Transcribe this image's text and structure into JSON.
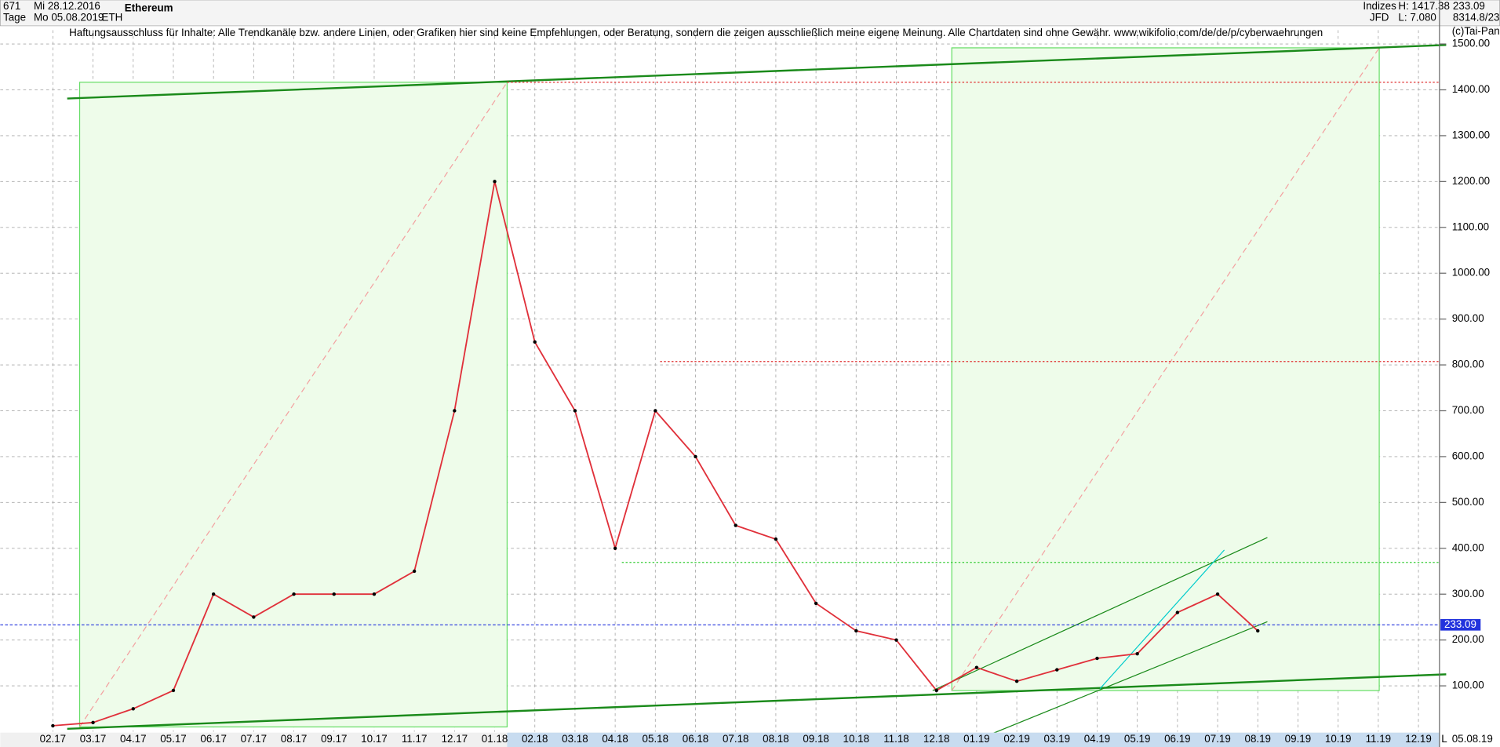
{
  "header": {
    "count": "671",
    "start": "Mi 28.12.2016",
    "period": "Tage",
    "end": "Mo 05.08.2019",
    "group": "Indizes",
    "broker": "JFD",
    "high": "H: 1417.38",
    "low": "L: 7.080",
    "stat": "8314.8/23",
    "copyright": "(c)Tai-Pan",
    "disclaimer": "Haftungsausschluss für Inhalte: Alle Trendkanäle bzw. andere Linien, oder Grafiken hier sind keine Empfehlungen, oder Beratung, sondern die zeigen ausschließlich meine eigene Meinung. Alle Chartdaten sind ohne Gewähr.  www.wikifolio.com/de/de/p/cyberwaehrungen",
    "date_end": "05.08.19",
    "scale_mark": "L"
  },
  "chart_data": {
    "type": "line",
    "title": "Ethereum",
    "symbol": "ETH",
    "categories": [
      "02.17",
      "03.17",
      "04.17",
      "05.17",
      "06.17",
      "07.17",
      "08.17",
      "09.17",
      "10.17",
      "11.17",
      "12.17",
      "01.18",
      "02.18",
      "03.18",
      "04.18",
      "05.18",
      "06.18",
      "07.18",
      "08.18",
      "09.18",
      "10.18",
      "11.18",
      "12.18",
      "01.19",
      "02.19",
      "03.19",
      "04.19",
      "05.19",
      "06.19",
      "07.19",
      "08.19",
      "09.19",
      "10.19",
      "11.19",
      "12.19"
    ],
    "values": [
      13,
      20,
      50,
      90,
      300,
      250,
      300,
      300,
      300,
      350,
      700,
      1200,
      850,
      700,
      400,
      700,
      600,
      450,
      420,
      280,
      220,
      200,
      90,
      140,
      110,
      135,
      160,
      170,
      260,
      300,
      220,
      null,
      null,
      null,
      null
    ],
    "color": "#e0303a",
    "ylim": [
      0,
      1530
    ],
    "yticks": [
      {
        "value": 100,
        "label": "100.00"
      },
      {
        "value": 200,
        "label": "200.00"
      },
      {
        "value": 300,
        "label": "300.00"
      },
      {
        "value": 400,
        "label": "400.00"
      },
      {
        "value": 500,
        "label": "500.00"
      },
      {
        "value": 600,
        "label": "600.00"
      },
      {
        "value": 700,
        "label": "700.00"
      },
      {
        "value": 800,
        "label": "800.00"
      },
      {
        "value": 900,
        "label": "900.00"
      },
      {
        "value": 1000,
        "label": "1000.00"
      },
      {
        "value": 1100,
        "label": "1100.00"
      },
      {
        "value": 1200,
        "label": "1200.00"
      },
      {
        "value": 1300,
        "label": "1300.00"
      },
      {
        "value": 1400,
        "label": "1400.00"
      },
      {
        "value": 1500,
        "label": "1500.00"
      }
    ],
    "last_price": {
      "value": 233.09,
      "label": "233.09"
    },
    "grid": true
  }
}
